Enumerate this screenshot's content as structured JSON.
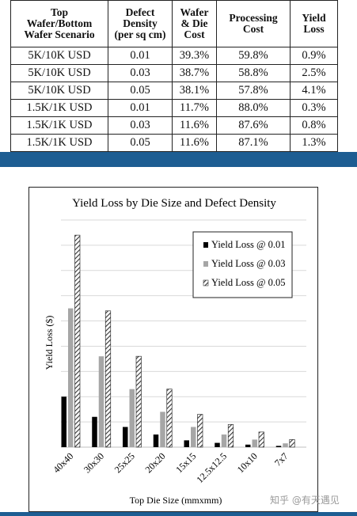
{
  "table": {
    "headers": [
      "Top Wafer/Bottom Wafer Scenario",
      "Defect Density (per sq cm)",
      "Wafer & Die Cost",
      "Processing Cost",
      "Yield Loss"
    ],
    "header_lines": [
      [
        "Top",
        "Wafer/Bottom",
        "Wafer Scenario"
      ],
      [
        "Defect",
        "Density",
        "(per sq cm)"
      ],
      [
        "Wafer",
        "& Die",
        "Cost"
      ],
      [
        "Processing",
        "Cost"
      ],
      [
        "Yield",
        "Loss"
      ]
    ],
    "rows": [
      [
        "5K/10K USD",
        "0.01",
        "39.3%",
        "59.8%",
        "0.9%"
      ],
      [
        "5K/10K USD",
        "0.03",
        "38.7%",
        "58.8%",
        "2.5%"
      ],
      [
        "5K/10K USD",
        "0.05",
        "38.1%",
        "57.8%",
        "4.1%"
      ],
      [
        "1.5K/1K USD",
        "0.01",
        "11.7%",
        "88.0%",
        "0.3%"
      ],
      [
        "1.5K/1K USD",
        "0.03",
        "11.6%",
        "87.6%",
        "0.8%"
      ],
      [
        "1.5K/1K USD",
        "0.05",
        "11.6%",
        "87.1%",
        "1.3%"
      ]
    ]
  },
  "colors": {
    "band": "#1d5d92",
    "series_001": "#000000",
    "series_003": "#a6a6a6",
    "hatch": "#333333",
    "grid": "#d9d9d9"
  },
  "chart_data": {
    "type": "bar",
    "title": "Yield Loss by Die Size and Defect Density",
    "xlabel": "Top Die Size (mmxmm)",
    "ylabel": "Yield Loss ($)",
    "categories": [
      "40x40",
      "30x30",
      "25x25",
      "20x20",
      "15x15",
      "12.5x12.5",
      "10x10",
      "7x7"
    ],
    "ylim": [
      0,
      9
    ],
    "gridlines": 9,
    "y_tick_labels_shown": false,
    "legend_position": "top-right",
    "series": [
      {
        "name": "Yield Loss @ 0.01",
        "style": "solid-black",
        "values": [
          2.0,
          1.2,
          0.8,
          0.5,
          0.27,
          0.17,
          0.1,
          0.05
        ]
      },
      {
        "name": "Yield Loss @ 0.03",
        "style": "solid-gray",
        "values": [
          5.5,
          3.6,
          2.3,
          1.4,
          0.8,
          0.5,
          0.3,
          0.15
        ]
      },
      {
        "name": "Yield Loss @ 0.05",
        "style": "hatched",
        "values": [
          8.4,
          5.4,
          3.6,
          2.3,
          1.3,
          0.9,
          0.6,
          0.3
        ]
      }
    ]
  },
  "watermark": "知乎 @有天遇见"
}
